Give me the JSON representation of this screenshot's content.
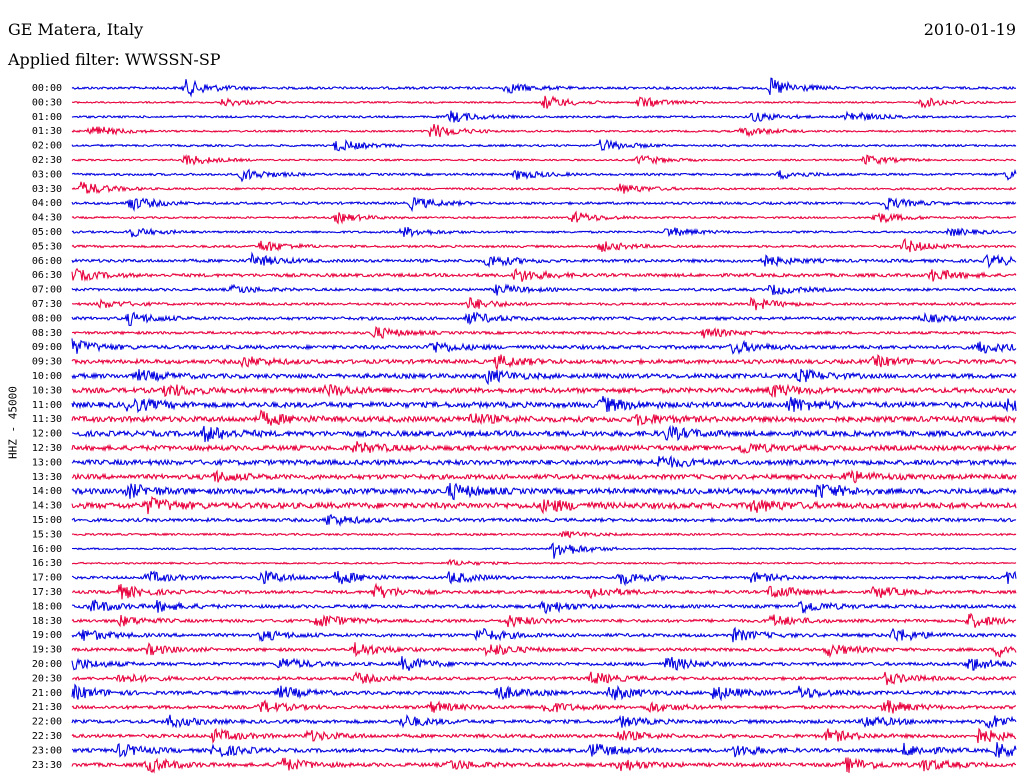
{
  "header": {
    "station": "GE Matera, Italy",
    "date": "2010-01-19",
    "filter": "Applied filter: WWSSN-SP"
  },
  "chart_data": {
    "type": "line",
    "title": "GE Matera, Italy",
    "date": "2010-01-19",
    "filter": "WWSSN-SP",
    "ylabel": "HHZ - 45000",
    "categories": [
      "00:00",
      "00:30",
      "01:00",
      "01:30",
      "02:00",
      "02:30",
      "03:00",
      "03:30",
      "04:00",
      "04:30",
      "05:00",
      "05:30",
      "06:00",
      "06:30",
      "07:00",
      "07:30",
      "08:00",
      "08:30",
      "09:00",
      "09:30",
      "10:00",
      "10:30",
      "11:00",
      "11:30",
      "12:00",
      "12:30",
      "13:00",
      "13:30",
      "14:00",
      "14:30",
      "15:00",
      "15:30",
      "16:00",
      "16:30",
      "17:00",
      "17:30",
      "18:00",
      "18:30",
      "19:00",
      "19:30",
      "20:00",
      "20:30",
      "21:00",
      "21:30",
      "22:00",
      "22:30",
      "23:00",
      "23:30"
    ],
    "trace_colors": [
      "#0000e0",
      "#e8003c"
    ],
    "noise_levels": [
      1.2,
      0.8,
      1,
      0.9,
      1,
      0.8,
      1.1,
      1,
      1.2,
      0.9,
      1,
      1.1,
      1.5,
      1.6,
      1.3,
      1.2,
      1.5,
      1.3,
      1.8,
      2,
      2.2,
      2.4,
      2.6,
      2.7,
      2.6,
      2.4,
      2.4,
      2.3,
      2.7,
      2.8,
      1.6,
      1,
      0.8,
      0.8,
      1.3,
      1.5,
      1.6,
      1.5,
      1.6,
      1.5,
      1.6,
      1.5,
      1.7,
      1.6,
      1.7,
      1.7,
      1.8,
      1.8
    ],
    "events": [
      [
        [
          0.12,
          8
        ],
        [
          0.46,
          5
        ],
        [
          0.74,
          9
        ]
      ],
      [
        [
          0.16,
          4
        ],
        [
          0.5,
          7
        ],
        [
          0.6,
          6
        ],
        [
          0.9,
          5
        ]
      ],
      [
        [
          0.4,
          6
        ],
        [
          0.72,
          5
        ],
        [
          0.82,
          6
        ]
      ],
      [
        [
          0.02,
          6
        ],
        [
          0.38,
          8
        ],
        [
          0.71,
          5
        ]
      ],
      [
        [
          0.28,
          6
        ],
        [
          0.56,
          6
        ]
      ],
      [
        [
          0.12,
          6
        ],
        [
          0.6,
          5
        ],
        [
          0.84,
          5
        ]
      ],
      [
        [
          0.18,
          6
        ],
        [
          0.47,
          5
        ],
        [
          0.75,
          4
        ],
        [
          0.99,
          5
        ]
      ],
      [
        [
          0.01,
          7
        ],
        [
          0.58,
          5
        ]
      ],
      [
        [
          0.06,
          7
        ],
        [
          0.36,
          6
        ],
        [
          0.86,
          6
        ]
      ],
      [
        [
          0.28,
          5
        ],
        [
          0.53,
          6
        ],
        [
          0.85,
          6
        ]
      ],
      [
        [
          0.06,
          5
        ],
        [
          0.35,
          5
        ],
        [
          0.63,
          5
        ],
        [
          0.93,
          4
        ]
      ],
      [
        [
          0.2,
          6
        ],
        [
          0.56,
          5
        ],
        [
          0.88,
          7
        ]
      ],
      [
        [
          0.19,
          6
        ],
        [
          0.44,
          6
        ],
        [
          0.73,
          6
        ],
        [
          0.97,
          6
        ]
      ],
      [
        [
          0.0,
          6
        ],
        [
          0.47,
          7
        ],
        [
          0.91,
          6
        ]
      ],
      [
        [
          0.17,
          4
        ],
        [
          0.45,
          5
        ],
        [
          0.74,
          5
        ]
      ],
      [
        [
          0.03,
          4
        ],
        [
          0.42,
          6
        ],
        [
          0.72,
          6
        ]
      ],
      [
        [
          0.06,
          6
        ],
        [
          0.42,
          6
        ],
        [
          0.9,
          4
        ]
      ],
      [
        [
          0.32,
          6
        ],
        [
          0.67,
          5
        ]
      ],
      [
        [
          0.0,
          7
        ],
        [
          0.38,
          6
        ],
        [
          0.7,
          6
        ],
        [
          0.96,
          6
        ]
      ],
      [
        [
          0.18,
          5
        ],
        [
          0.45,
          6
        ],
        [
          0.85,
          5
        ]
      ],
      [
        [
          0.07,
          5
        ],
        [
          0.44,
          6
        ],
        [
          0.77,
          6
        ]
      ],
      [
        [
          0.1,
          6
        ],
        [
          0.27,
          5
        ],
        [
          0.74,
          6
        ]
      ],
      [
        [
          0.06,
          7
        ],
        [
          0.56,
          7
        ],
        [
          0.76,
          7
        ],
        [
          0.99,
          6
        ]
      ],
      [
        [
          0.2,
          6
        ],
        [
          0.42,
          5
        ],
        [
          0.6,
          5
        ]
      ],
      [
        [
          0.14,
          7
        ],
        [
          0.63,
          6
        ]
      ],
      [
        [
          0.3,
          5
        ],
        [
          0.71,
          5
        ]
      ],
      [
        [
          0.62,
          6
        ]
      ],
      [
        [
          0.15,
          5
        ],
        [
          0.82,
          6
        ]
      ],
      [
        [
          0.06,
          6
        ],
        [
          0.4,
          7
        ],
        [
          0.79,
          7
        ]
      ],
      [
        [
          0.08,
          7
        ],
        [
          0.5,
          6
        ],
        [
          0.72,
          6
        ]
      ],
      [
        [
          0.27,
          6
        ]
      ],
      [
        [
          0.52,
          3
        ]
      ],
      [
        [
          0.51,
          10
        ]
      ],
      [
        [
          0.4,
          3
        ]
      ],
      [
        [
          0.08,
          6
        ],
        [
          0.2,
          7
        ],
        [
          0.28,
          7
        ],
        [
          0.4,
          6
        ],
        [
          0.58,
          7
        ],
        [
          0.72,
          5
        ],
        [
          0.99,
          6
        ]
      ],
      [
        [
          0.05,
          7
        ],
        [
          0.32,
          7
        ],
        [
          0.55,
          6
        ],
        [
          0.74,
          7
        ],
        [
          0.85,
          6
        ]
      ],
      [
        [
          0.02,
          6
        ],
        [
          0.09,
          5
        ],
        [
          0.5,
          6
        ],
        [
          0.77,
          7
        ]
      ],
      [
        [
          0.05,
          5
        ],
        [
          0.26,
          7
        ],
        [
          0.46,
          6
        ],
        [
          0.74,
          6
        ],
        [
          0.95,
          7
        ]
      ],
      [
        [
          0.01,
          6
        ],
        [
          0.2,
          5
        ],
        [
          0.43,
          7
        ],
        [
          0.7,
          6
        ],
        [
          0.87,
          7
        ]
      ],
      [
        [
          0.08,
          5
        ],
        [
          0.3,
          7
        ],
        [
          0.44,
          7
        ],
        [
          0.8,
          6
        ],
        [
          0.98,
          7
        ]
      ],
      [
        [
          0.0,
          6
        ],
        [
          0.22,
          6
        ],
        [
          0.35,
          7
        ],
        [
          0.63,
          7
        ],
        [
          0.95,
          7
        ]
      ],
      [
        [
          0.05,
          5
        ],
        [
          0.3,
          5
        ],
        [
          0.55,
          6
        ],
        [
          0.86,
          6
        ]
      ],
      [
        [
          0.0,
          7
        ],
        [
          0.22,
          6
        ],
        [
          0.45,
          7
        ],
        [
          0.57,
          7
        ],
        [
          0.68,
          7
        ],
        [
          0.77,
          6
        ]
      ],
      [
        [
          0.2,
          6
        ],
        [
          0.38,
          5
        ],
        [
          0.5,
          6
        ],
        [
          0.61,
          5
        ],
        [
          0.86,
          7
        ]
      ],
      [
        [
          0.1,
          6
        ],
        [
          0.35,
          6
        ],
        [
          0.58,
          5
        ],
        [
          0.84,
          6
        ],
        [
          0.97,
          7
        ]
      ],
      [
        [
          0.15,
          6
        ],
        [
          0.25,
          5
        ],
        [
          0.58,
          5
        ],
        [
          0.8,
          6
        ],
        [
          0.96,
          7
        ]
      ],
      [
        [
          0.05,
          6
        ],
        [
          0.15,
          7
        ],
        [
          0.55,
          7
        ],
        [
          0.7,
          6
        ],
        [
          0.88,
          6
        ],
        [
          0.98,
          7
        ]
      ],
      [
        [
          0.08,
          7
        ],
        [
          0.22,
          7
        ],
        [
          0.4,
          5
        ],
        [
          0.58,
          6
        ],
        [
          0.82,
          7
        ],
        [
          0.9,
          6
        ]
      ]
    ]
  }
}
